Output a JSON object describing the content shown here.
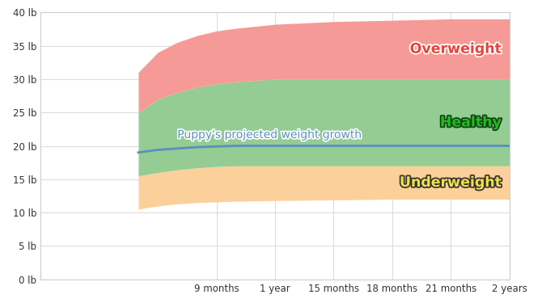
{
  "chart_data": {
    "type": "area",
    "x": [
      5,
      6,
      7,
      8,
      9,
      10,
      12,
      15,
      18,
      21,
      24
    ],
    "series": [
      {
        "name": "Underweight",
        "type": "area",
        "color": "#fcd09a",
        "lower": [
          10.5,
          11,
          11.3,
          11.5,
          11.6,
          11.7,
          11.8,
          11.9,
          12,
          12,
          12
        ],
        "upper": [
          15.5,
          16,
          16.4,
          16.7,
          16.9,
          17,
          17,
          17,
          17,
          17,
          17
        ]
      },
      {
        "name": "Healthy",
        "type": "area",
        "color": "#94cc94",
        "lower": [
          15.5,
          16,
          16.4,
          16.7,
          16.9,
          17,
          17,
          17,
          17,
          17,
          17
        ],
        "upper": [
          25,
          27,
          28,
          28.8,
          29.3,
          29.6,
          30,
          30,
          30,
          30,
          30
        ]
      },
      {
        "name": "Overweight",
        "type": "area",
        "color": "#f59a96",
        "lower": [
          25,
          27,
          28,
          28.8,
          29.3,
          29.6,
          30,
          30,
          30,
          30,
          30
        ],
        "upper": [
          31,
          34,
          35.5,
          36.5,
          37.2,
          37.6,
          38.2,
          38.6,
          38.8,
          39,
          39
        ]
      },
      {
        "name": "Puppy's projected weight growth",
        "type": "line",
        "color": "#5a8fbf",
        "values": [
          19,
          19.4,
          19.6,
          19.8,
          19.9,
          20,
          20,
          20,
          20,
          20,
          20
        ]
      }
    ],
    "xlim": [
      0,
      24
    ],
    "xticks": [
      {
        "value": 9,
        "label": "9 months"
      },
      {
        "value": 12,
        "label": "1 year"
      },
      {
        "value": 15,
        "label": "15 months"
      },
      {
        "value": 18,
        "label": "18 months"
      },
      {
        "value": 21,
        "label": "21 months"
      },
      {
        "value": 24,
        "label": "2 years"
      }
    ],
    "ylim": [
      0,
      40
    ],
    "yticks": [
      {
        "value": 0,
        "label": "0 lb"
      },
      {
        "value": 5,
        "label": "5 lb"
      },
      {
        "value": 10,
        "label": "10 lb"
      },
      {
        "value": 15,
        "label": "15 lb"
      },
      {
        "value": 20,
        "label": "20 lb"
      },
      {
        "value": 25,
        "label": "25 lb"
      },
      {
        "value": 30,
        "label": "30 lb"
      },
      {
        "value": 35,
        "label": "35 lb"
      },
      {
        "value": 40,
        "label": "40 lb"
      }
    ],
    "grid": true
  }
}
